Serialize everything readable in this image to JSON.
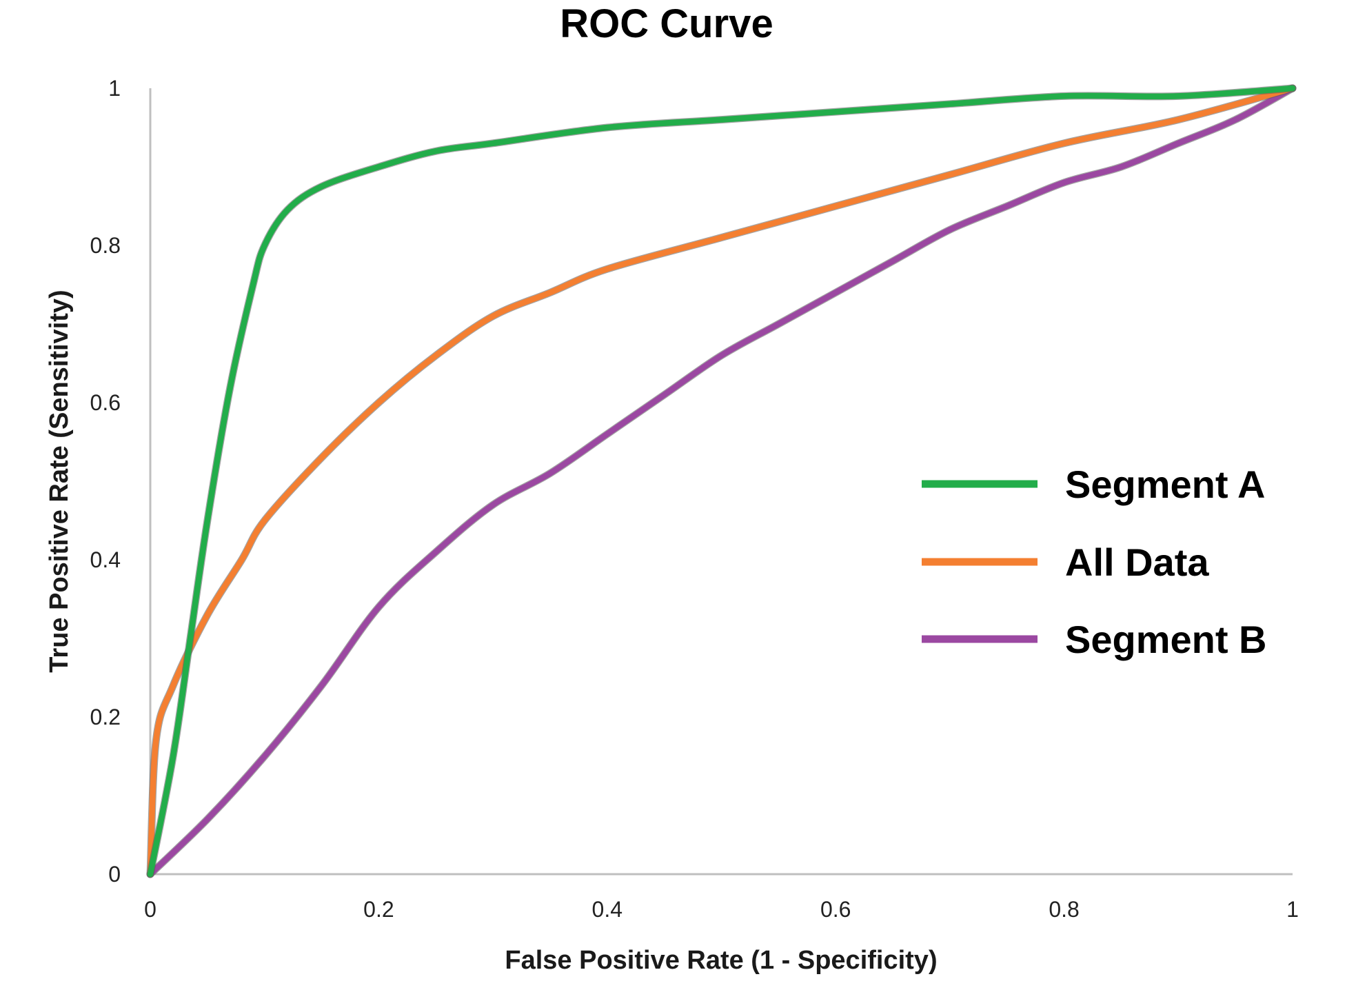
{
  "chart_data": {
    "type": "line",
    "title": "ROC Curve",
    "xlabel": "False Positive Rate (1 - Specificity)",
    "ylabel": "True Positive Rate (Sensitivity)",
    "xlim": [
      0,
      1
    ],
    "ylim": [
      0,
      1
    ],
    "x_ticks": [
      "0",
      "0.2",
      "0.4",
      "0.6",
      "0.8",
      "1"
    ],
    "y_ticks": [
      "0",
      "0.2",
      "0.4",
      "0.6",
      "0.8",
      "1"
    ],
    "grid": false,
    "legend_position": "right",
    "series": [
      {
        "name": "Segment A",
        "color": "#22ad4a",
        "points": [
          [
            0,
            0
          ],
          [
            0.02,
            0.15
          ],
          [
            0.035,
            0.3
          ],
          [
            0.05,
            0.45
          ],
          [
            0.07,
            0.62
          ],
          [
            0.09,
            0.75
          ],
          [
            0.1,
            0.8
          ],
          [
            0.12,
            0.845
          ],
          [
            0.15,
            0.875
          ],
          [
            0.2,
            0.9
          ],
          [
            0.25,
            0.92
          ],
          [
            0.3,
            0.93
          ],
          [
            0.4,
            0.95
          ],
          [
            0.5,
            0.96
          ],
          [
            0.6,
            0.97
          ],
          [
            0.7,
            0.98
          ],
          [
            0.8,
            0.99
          ],
          [
            0.9,
            0.99
          ],
          [
            1,
            1
          ]
        ]
      },
      {
        "name": "All Data",
        "color": "#f47f31",
        "points": [
          [
            0,
            0
          ],
          [
            0.005,
            0.17
          ],
          [
            0.02,
            0.24
          ],
          [
            0.05,
            0.33
          ],
          [
            0.08,
            0.4
          ],
          [
            0.1,
            0.45
          ],
          [
            0.15,
            0.53
          ],
          [
            0.2,
            0.6
          ],
          [
            0.25,
            0.66
          ],
          [
            0.3,
            0.71
          ],
          [
            0.35,
            0.74
          ],
          [
            0.4,
            0.77
          ],
          [
            0.5,
            0.81
          ],
          [
            0.6,
            0.85
          ],
          [
            0.7,
            0.89
          ],
          [
            0.8,
            0.93
          ],
          [
            0.9,
            0.96
          ],
          [
            1,
            1
          ]
        ]
      },
      {
        "name": "Segment B",
        "color": "#9b48a1",
        "points": [
          [
            0,
            0
          ],
          [
            0.05,
            0.07
          ],
          [
            0.1,
            0.15
          ],
          [
            0.15,
            0.24
          ],
          [
            0.2,
            0.34
          ],
          [
            0.25,
            0.41
          ],
          [
            0.3,
            0.47
          ],
          [
            0.35,
            0.51
          ],
          [
            0.4,
            0.56
          ],
          [
            0.45,
            0.61
          ],
          [
            0.5,
            0.66
          ],
          [
            0.55,
            0.7
          ],
          [
            0.6,
            0.74
          ],
          [
            0.65,
            0.78
          ],
          [
            0.7,
            0.82
          ],
          [
            0.75,
            0.85
          ],
          [
            0.8,
            0.88
          ],
          [
            0.85,
            0.9
          ],
          [
            0.9,
            0.93
          ],
          [
            0.95,
            0.96
          ],
          [
            1,
            1
          ]
        ]
      }
    ],
    "legend_order": [
      "Segment A",
      "All Data",
      "Segment B"
    ]
  }
}
